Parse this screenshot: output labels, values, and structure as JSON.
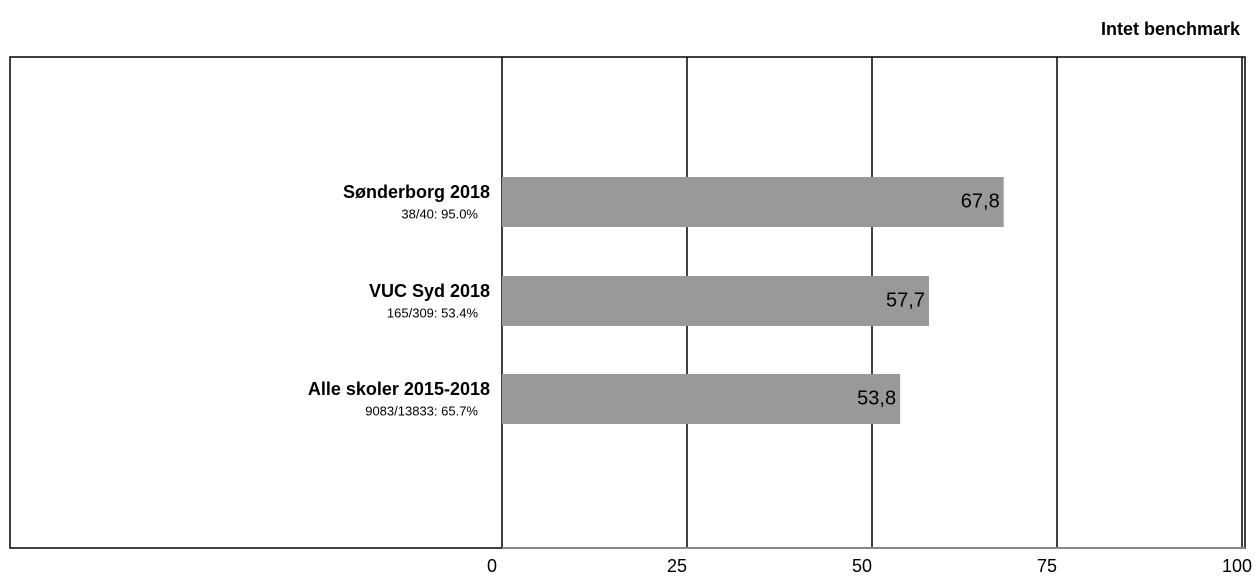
{
  "chart_data": {
    "type": "hbar",
    "title": "Intet benchmark",
    "categories": [
      "Sønderborg 2018",
      "VUC Syd 2018",
      "Alle skoler 2015-2018"
    ],
    "category_notes": [
      "38/40: 95.0%",
      "165/309: 53.4%",
      "9083/13833: 65.7%"
    ],
    "values": [
      67.8,
      57.7,
      53.8
    ],
    "value_labels": [
      "67,8",
      "57,7",
      "53,8"
    ],
    "color": "#999999",
    "xlim": [
      0,
      100
    ],
    "xticks": [
      0,
      25,
      50,
      75,
      100
    ],
    "grid": true
  }
}
